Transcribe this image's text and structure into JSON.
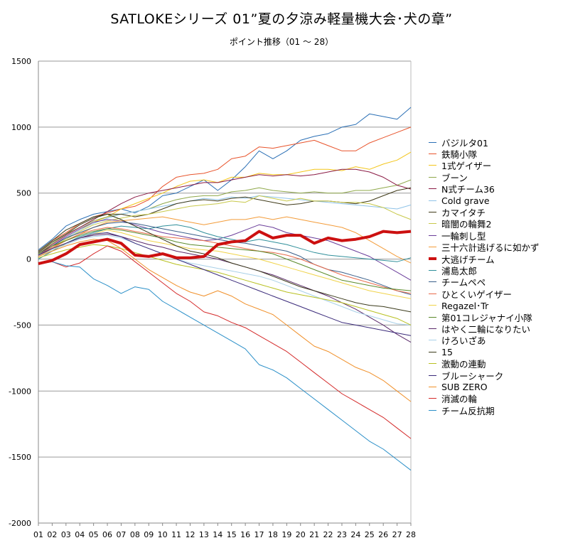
{
  "chart_data": {
    "type": "line",
    "title": "SATLOKEシリーズ 01”夏の夕涼み軽量機大会･犬の章”",
    "subtitle": "ポイント推移（01 ～ 28）",
    "xlabel": "",
    "ylabel": "",
    "ylim": [
      -2000,
      1500
    ],
    "yticks": [
      -2000,
      -1500,
      -1000,
      -500,
      0,
      500,
      1000,
      1500
    ],
    "grid": true,
    "legend_position": "right",
    "categories": [
      "01",
      "02",
      "03",
      "04",
      "05",
      "06",
      "07",
      "08",
      "09",
      "10",
      "11",
      "12",
      "13",
      "14",
      "15",
      "16",
      "17",
      "18",
      "19",
      "20",
      "21",
      "22",
      "23",
      "24",
      "25",
      "26",
      "27",
      "28"
    ],
    "series": [
      {
        "name": "バジルタ01",
        "color": "#2a6fb5",
        "width": 1,
        "values": [
          70,
          150,
          250,
          300,
          340,
          360,
          380,
          350,
          400,
          480,
          500,
          550,
          600,
          520,
          600,
          700,
          820,
          760,
          820,
          900,
          930,
          950,
          1000,
          1020,
          1100,
          1080,
          1060,
          1150
        ]
      },
      {
        "name": "鉄騎小隊",
        "color": "#e8542c",
        "width": 1,
        "values": [
          60,
          140,
          200,
          270,
          320,
          350,
          380,
          400,
          450,
          550,
          620,
          640,
          650,
          680,
          760,
          780,
          850,
          840,
          860,
          880,
          900,
          860,
          820,
          820,
          880,
          920,
          960,
          1000
        ]
      },
      {
        "name": "1式ゲイザー",
        "color": "#f3c51a",
        "width": 1,
        "values": [
          40,
          100,
          160,
          220,
          280,
          320,
          380,
          420,
          460,
          500,
          550,
          590,
          600,
          580,
          620,
          620,
          650,
          640,
          640,
          660,
          680,
          680,
          670,
          700,
          680,
          720,
          750,
          810
        ]
      },
      {
        "name": "ブーン",
        "color": "#8fa84a",
        "width": 1,
        "values": [
          50,
          120,
          190,
          240,
          290,
          320,
          340,
          360,
          380,
          420,
          450,
          470,
          480,
          480,
          510,
          520,
          540,
          520,
          510,
          500,
          510,
          500,
          500,
          520,
          520,
          540,
          560,
          600
        ]
      },
      {
        "name": "N式チーム36",
        "color": "#8a1a44",
        "width": 1,
        "values": [
          40,
          110,
          180,
          240,
          300,
          360,
          420,
          470,
          500,
          520,
          540,
          560,
          580,
          580,
          600,
          620,
          640,
          630,
          640,
          630,
          640,
          660,
          680,
          680,
          660,
          620,
          560,
          530
        ]
      },
      {
        "name": "Cold grave",
        "color": "#8fc3e8",
        "width": 1,
        "values": [
          30,
          100,
          160,
          220,
          270,
          310,
          340,
          360,
          380,
          400,
          420,
          440,
          460,
          450,
          470,
          460,
          480,
          470,
          460,
          450,
          440,
          430,
          420,
          410,
          400,
          390,
          380,
          410
        ]
      },
      {
        "name": "カマイタチ",
        "color": "#3f3a18",
        "width": 1,
        "values": [
          50,
          130,
          190,
          260,
          310,
          340,
          340,
          320,
          340,
          380,
          420,
          440,
          450,
          440,
          460,
          470,
          450,
          430,
          410,
          420,
          440,
          440,
          430,
          420,
          440,
          480,
          520,
          540
        ]
      },
      {
        "name": "暗闇の輪舞2",
        "color": "#c8c84a",
        "width": 1,
        "values": [
          30,
          90,
          150,
          210,
          260,
          290,
          310,
          330,
          340,
          360,
          380,
          400,
          410,
          420,
          440,
          430,
          480,
          460,
          440,
          460,
          440,
          440,
          430,
          430,
          420,
          390,
          340,
          300
        ]
      },
      {
        "name": "一輪刺し型",
        "color": "#6a3d9a",
        "width": 1,
        "values": [
          30,
          100,
          170,
          230,
          280,
          300,
          290,
          260,
          230,
          200,
          180,
          160,
          140,
          150,
          180,
          220,
          260,
          240,
          200,
          180,
          160,
          140,
          100,
          60,
          20,
          -40,
          -100,
          -160
        ]
      },
      {
        "name": "三十六計逃げるに如かず",
        "color": "#f39c3a",
        "width": 1,
        "values": [
          20,
          80,
          140,
          190,
          240,
          280,
          290,
          300,
          310,
          320,
          300,
          280,
          260,
          280,
          300,
          300,
          320,
          300,
          320,
          300,
          280,
          260,
          240,
          200,
          140,
          80,
          20,
          -30
        ]
      },
      {
        "name": "大逃げチーム",
        "color": "#cc1010",
        "width": 4,
        "values": [
          -35,
          -10,
          40,
          110,
          130,
          150,
          120,
          30,
          20,
          40,
          10,
          10,
          20,
          110,
          130,
          140,
          210,
          160,
          180,
          180,
          120,
          160,
          140,
          150,
          170,
          210,
          200,
          210
        ]
      },
      {
        "name": "浦島太郎",
        "color": "#2f8f9a",
        "width": 1,
        "values": [
          0,
          60,
          120,
          170,
          200,
          230,
          250,
          240,
          230,
          250,
          260,
          240,
          200,
          170,
          150,
          130,
          150,
          130,
          110,
          80,
          50,
          30,
          20,
          10,
          0,
          -10,
          -20,
          10
        ]
      },
      {
        "name": "チームペペ",
        "color": "#3a5f8a",
        "width": 1,
        "values": [
          40,
          100,
          160,
          200,
          240,
          270,
          280,
          270,
          250,
          230,
          210,
          190,
          170,
          150,
          130,
          120,
          100,
          80,
          60,
          20,
          -40,
          -80,
          -100,
          -130,
          -160,
          -200,
          -240,
          -270
        ]
      },
      {
        "name": "ひとくいゲイザー",
        "color": "#e86a4a",
        "width": 1,
        "values": [
          30,
          90,
          140,
          190,
          220,
          240,
          230,
          210,
          190,
          170,
          160,
          150,
          140,
          120,
          100,
          80,
          60,
          50,
          30,
          0,
          -40,
          -80,
          -120,
          -150,
          -180,
          -210,
          -240,
          -260
        ]
      },
      {
        "name": "Regazel･Tr",
        "color": "#f0d34a",
        "width": 1,
        "values": [
          20,
          70,
          120,
          160,
          190,
          220,
          200,
          170,
          140,
          120,
          100,
          80,
          70,
          60,
          40,
          20,
          0,
          -30,
          -60,
          -90,
          -120,
          -150,
          -180,
          -210,
          -240,
          -260,
          -280,
          -300
        ]
      },
      {
        "name": "第01コレジャナイ小隊",
        "color": "#5a8a2a",
        "width": 1,
        "values": [
          40,
          100,
          140,
          180,
          210,
          230,
          220,
          200,
          180,
          160,
          130,
          110,
          100,
          90,
          80,
          70,
          60,
          40,
          0,
          -40,
          -80,
          -120,
          -160,
          -180,
          -200,
          -220,
          -230,
          -240
        ]
      },
      {
        "name": "はやく二輪になりたい",
        "color": "#5a2a6a",
        "width": 1,
        "values": [
          30,
          80,
          120,
          160,
          180,
          190,
          170,
          140,
          110,
          90,
          60,
          40,
          20,
          0,
          -30,
          -60,
          -90,
          -120,
          -160,
          -200,
          -240,
          -280,
          -330,
          -380,
          -440,
          -500,
          -570,
          -630
        ]
      },
      {
        "name": "けろいざあ",
        "color": "#a8d0e8",
        "width": 1,
        "values": [
          20,
          70,
          110,
          150,
          170,
          180,
          160,
          120,
          80,
          40,
          0,
          -30,
          -50,
          -70,
          -90,
          -110,
          -130,
          -160,
          -200,
          -240,
          -280,
          -320,
          -360,
          -400,
          -430,
          -460,
          -490,
          -500
        ]
      },
      {
        "name": "15",
        "color": "#3a3a1a",
        "width": 1,
        "values": [
          60,
          140,
          220,
          270,
          320,
          340,
          300,
          250,
          200,
          150,
          100,
          60,
          40,
          10,
          -30,
          -60,
          -90,
          -130,
          -170,
          -210,
          -240,
          -270,
          -300,
          -330,
          -350,
          -360,
          -380,
          -400
        ]
      },
      {
        "name": "激動の連動",
        "color": "#b8c020",
        "width": 1,
        "values": [
          10,
          40,
          70,
          90,
          110,
          100,
          80,
          50,
          20,
          -10,
          -40,
          -60,
          -80,
          -100,
          -130,
          -160,
          -190,
          -220,
          -250,
          -270,
          -290,
          -310,
          -330,
          -360,
          -390,
          -420,
          -450,
          -500
        ]
      },
      {
        "name": "ブルーシャーク",
        "color": "#3a2a7a",
        "width": 1,
        "values": [
          30,
          80,
          120,
          160,
          190,
          200,
          170,
          120,
          80,
          40,
          0,
          -40,
          -80,
          -120,
          -160,
          -200,
          -240,
          -280,
          -320,
          -360,
          -400,
          -440,
          -480,
          -500,
          -520,
          -540,
          -560,
          -580
        ]
      },
      {
        "name": "SUB ZERO",
        "color": "#f0902a",
        "width": 1,
        "values": [
          20,
          60,
          100,
          130,
          150,
          140,
          80,
          0,
          -80,
          -140,
          -200,
          -250,
          -280,
          -240,
          -280,
          -340,
          -380,
          -420,
          -500,
          -580,
          -660,
          -700,
          -760,
          -820,
          -860,
          -920,
          -1000,
          -1080
        ]
      },
      {
        "name": "消滅の輪",
        "color": "#d42a2a",
        "width": 1,
        "values": [
          -40,
          -20,
          -60,
          -30,
          40,
          100,
          60,
          -20,
          -100,
          -180,
          -260,
          -320,
          -400,
          -430,
          -480,
          -520,
          -580,
          -640,
          -700,
          -780,
          -860,
          -940,
          -1020,
          -1080,
          -1140,
          -1200,
          -1280,
          -1360
        ]
      },
      {
        "name": "チーム反抗期",
        "color": "#2a8fc8",
        "width": 1,
        "values": [
          -30,
          -20,
          -50,
          -60,
          -150,
          -200,
          -260,
          -210,
          -230,
          -320,
          -380,
          -440,
          -500,
          -560,
          -620,
          -680,
          -800,
          -840,
          -900,
          -980,
          -1060,
          -1140,
          -1220,
          -1300,
          -1380,
          -1440,
          -1520,
          -1600
        ]
      }
    ]
  }
}
